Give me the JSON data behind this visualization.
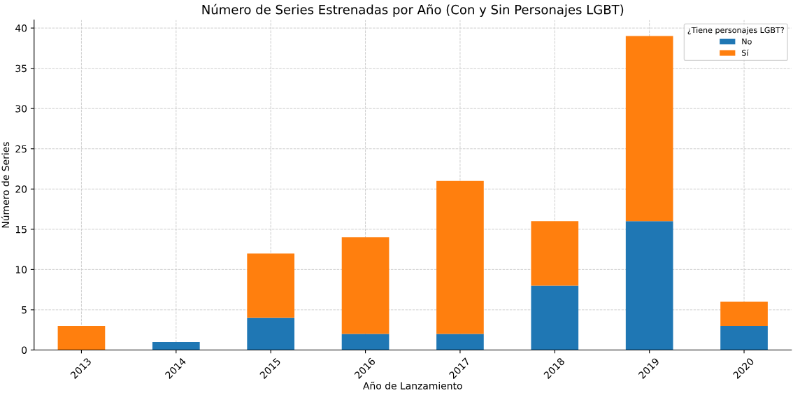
{
  "chart_data": {
    "type": "bar",
    "stacked": true,
    "title": "Número de Series Estrenadas por Año (Con y Sin Personajes LGBT)",
    "xlabel": "Año de Lanzamiento",
    "ylabel": "Número de Series",
    "legend_title": "¿Tiene personajes LGBT?",
    "legend": "top right",
    "grid": true,
    "categories": [
      "2013",
      "2014",
      "2015",
      "2016",
      "2017",
      "2018",
      "2019",
      "2020"
    ],
    "series": [
      {
        "name": "No",
        "color": "#1f77b4",
        "values": [
          0,
          1,
          4,
          2,
          2,
          8,
          16,
          3
        ]
      },
      {
        "name": "Sí",
        "color": "#ff7f0e",
        "values": [
          3,
          0,
          8,
          12,
          19,
          8,
          23,
          3
        ]
      }
    ],
    "ylim": [
      0,
      41
    ],
    "yticks": [
      0,
      5,
      10,
      15,
      20,
      25,
      30,
      35,
      40
    ]
  }
}
